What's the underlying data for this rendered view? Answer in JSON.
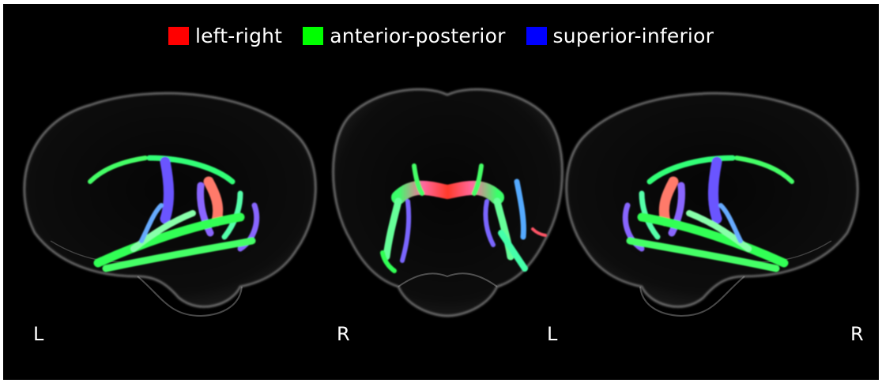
{
  "legend": {
    "items": [
      {
        "label": "left-right",
        "color": "#ff0000"
      },
      {
        "label": "anterior-posterior",
        "color": "#00ff00"
      },
      {
        "label": "superior-inferior",
        "color": "#0000ff"
      }
    ]
  },
  "panels": {
    "left_view": {
      "left_label": "L"
    },
    "front_view": {
      "left_label": "R",
      "right_label": "L"
    },
    "right_view": {
      "right_label": "R"
    }
  }
}
